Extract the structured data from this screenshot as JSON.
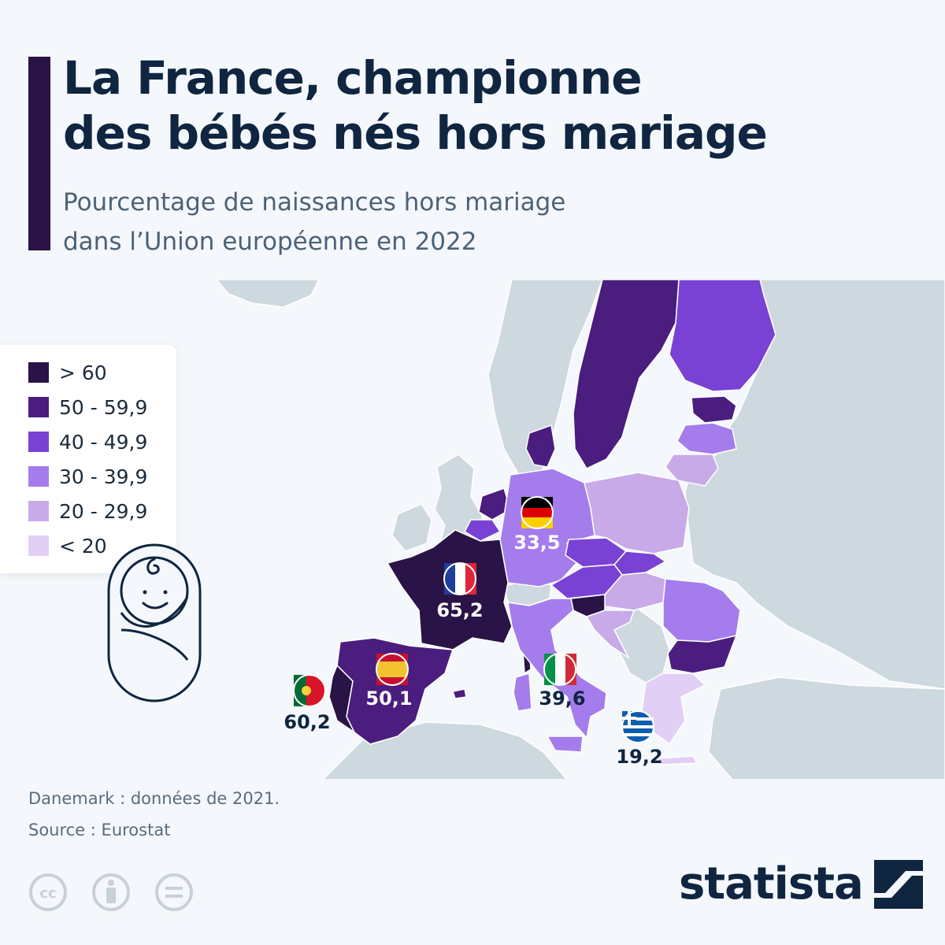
{
  "header": {
    "title_line1": "La France, championne",
    "title_line2": "des bébés nés hors mariage",
    "subtitle_line1": "Pourcentage de naissances hors mariage",
    "subtitle_line2": "dans l’Union européenne en 2022"
  },
  "legend": {
    "items": [
      {
        "label": "> 60",
        "color": "#2a1346"
      },
      {
        "label": "50 - 59,9",
        "color": "#4a1d7e"
      },
      {
        "label": "40 - 49,9",
        "color": "#7a42d4"
      },
      {
        "label": "30 - 39,9",
        "color": "#a47cec"
      },
      {
        "label": "20 - 29,9",
        "color": "#c8aae9"
      },
      {
        "label": "< 20",
        "color": "#e2cff5"
      }
    ]
  },
  "callouts": {
    "germany": "33,5",
    "france": "65,2",
    "spain": "50,1",
    "portugal": "60,2",
    "italy": "39,6",
    "greece": "19,2"
  },
  "colors": {
    "background": "#f4f7fb",
    "land_non_eu": "#cdd8df",
    "title": "#0f2540",
    "accent": "#2a1346"
  },
  "icons": [
    "baby-icon",
    "cc-icon",
    "attribution-icon",
    "no-derivatives-icon",
    "statista-logo-icon"
  ],
  "footer": {
    "note": "Danemark : données de 2021.",
    "source": "Source : Eurostat",
    "brand": "statista"
  }
}
